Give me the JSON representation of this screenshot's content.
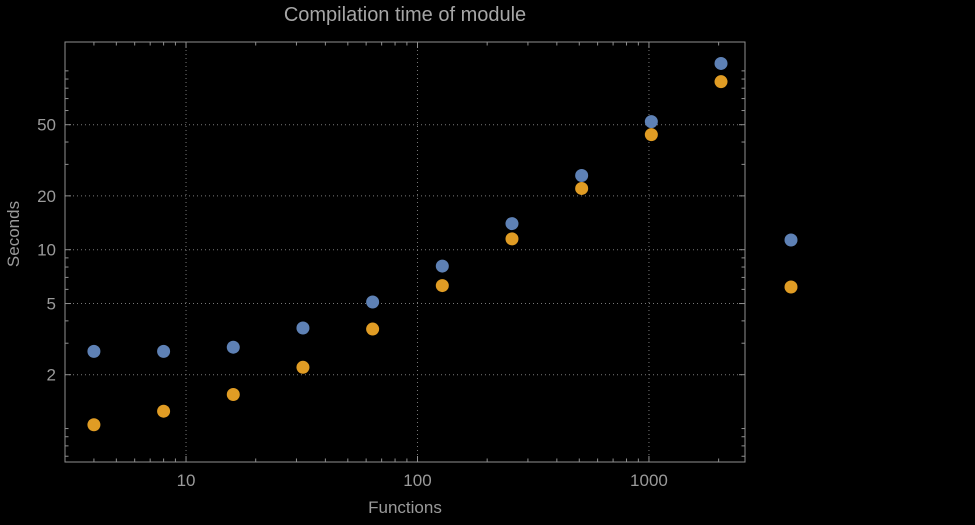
{
  "chart_data": {
    "type": "scatter",
    "title": "Compilation time of module",
    "xlabel": "Functions",
    "ylabel": "Seconds",
    "x_scale": "log",
    "y_scale": "log",
    "xlim": [
      3,
      2600
    ],
    "ylim": [
      0.65,
      145
    ],
    "grid": true,
    "x_ticks": [
      {
        "value": 10,
        "label": "10"
      },
      {
        "value": 100,
        "label": "100"
      },
      {
        "value": 1000,
        "label": "1000"
      }
    ],
    "y_ticks": [
      {
        "value": 2,
        "label": "2"
      },
      {
        "value": 5,
        "label": "5"
      },
      {
        "value": 10,
        "label": "10"
      },
      {
        "value": 20,
        "label": "20"
      },
      {
        "value": 50,
        "label": "50"
      }
    ],
    "series": [
      {
        "color": "#5e81b5",
        "x": [
          4,
          8,
          16,
          32,
          64,
          128,
          256,
          512,
          1024,
          2048
        ],
        "y": [
          2.7,
          2.7,
          2.85,
          3.65,
          5.1,
          8.1,
          14,
          26,
          52,
          110
        ]
      },
      {
        "color": "#e09c24",
        "x": [
          4,
          8,
          16,
          32,
          64,
          128,
          256,
          512,
          1024,
          2048
        ],
        "y": [
          1.05,
          1.25,
          1.55,
          2.2,
          3.6,
          6.3,
          11.5,
          22,
          44,
          87
        ]
      }
    ],
    "legend": {
      "position": "right",
      "markers": [
        {
          "color": "#5e81b5"
        },
        {
          "color": "#e09c24"
        }
      ]
    }
  },
  "colors": {
    "background": "#000000",
    "frame": "#8f8f8f",
    "grid": "#787878",
    "text": "#9a9a9a"
  }
}
